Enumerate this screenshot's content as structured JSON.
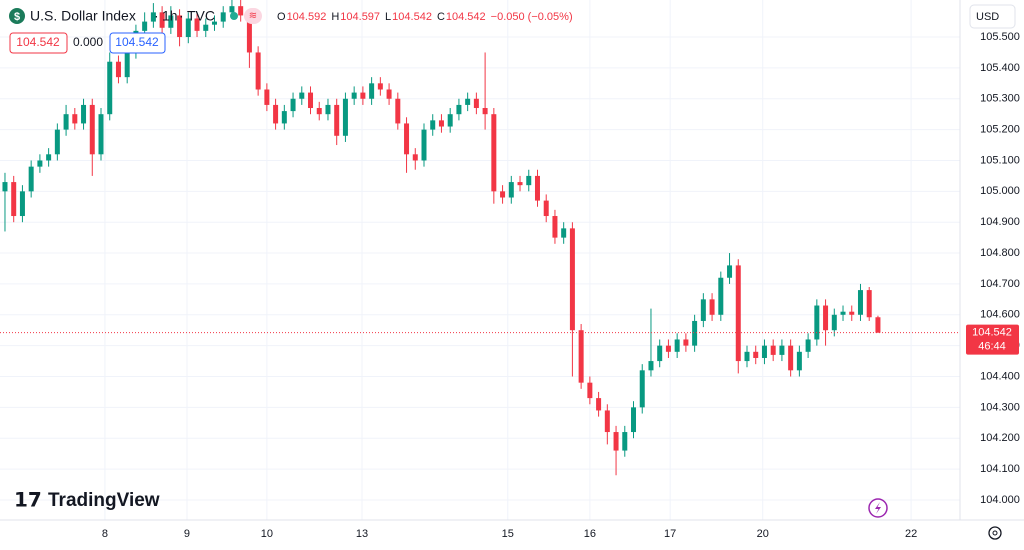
{
  "header": {
    "symbol": "U.S. Dollar Index",
    "interval": "1h",
    "exchange": "TVC",
    "ohlc": [
      {
        "key": "O",
        "value": "104.592"
      },
      {
        "key": "H",
        "value": "104.597"
      },
      {
        "key": "L",
        "value": "104.542"
      },
      {
        "key": "C",
        "value": "104.542"
      }
    ],
    "change": "−0.050 (−0.05%)",
    "sell_price": "104.542",
    "spread": "0.000",
    "buy_price": "104.542"
  },
  "currency": "USD",
  "price_tag": {
    "price": "104.542",
    "countdown": "46:44"
  },
  "logo": "TradingView",
  "chart_data": {
    "type": "candlestick",
    "up_color": "#089981",
    "down_color": "#f23645",
    "grid": true,
    "ylim": [
      103.935,
      105.62
    ],
    "xlim": [
      -0.57,
      109.4
    ],
    "yticks": [
      {
        "value": 104.0,
        "label": "104.000"
      },
      {
        "value": 104.1,
        "label": "104.100"
      },
      {
        "value": 104.2,
        "label": "104.200"
      },
      {
        "value": 104.3,
        "label": "104.300"
      },
      {
        "value": 104.4,
        "label": "104.400"
      },
      {
        "value": 104.5,
        "label": "104.500"
      },
      {
        "value": 104.6,
        "label": "104.600"
      },
      {
        "value": 104.7,
        "label": "104.700"
      },
      {
        "value": 104.8,
        "label": "104.800"
      },
      {
        "value": 104.9,
        "label": "104.900"
      },
      {
        "value": 105.0,
        "label": "105.000"
      },
      {
        "value": 105.1,
        "label": "105.100"
      },
      {
        "value": 105.2,
        "label": "105.200"
      },
      {
        "value": 105.3,
        "label": "105.300"
      },
      {
        "value": 105.4,
        "label": "105.400"
      },
      {
        "value": 105.5,
        "label": "105.500"
      }
    ],
    "xticks": [
      {
        "value": 11.45,
        "label": "8"
      },
      {
        "value": 20.85,
        "label": "9"
      },
      {
        "value": 30.0,
        "label": "10"
      },
      {
        "value": 40.9,
        "label": "13"
      },
      {
        "value": 57.6,
        "label": "15"
      },
      {
        "value": 67.0,
        "label": "16"
      },
      {
        "value": 76.2,
        "label": "17"
      },
      {
        "value": 86.8,
        "label": "20"
      },
      {
        "value": 103.8,
        "label": "22"
      }
    ],
    "open": [
      105.0,
      105.03,
      104.92,
      105.0,
      105.08,
      105.1,
      105.12,
      105.2,
      105.25,
      105.22,
      105.28,
      105.12,
      105.25,
      105.42,
      105.37,
      105.45,
      105.52,
      105.55,
      105.58,
      105.53,
      105.57,
      105.5,
      105.56,
      105.52,
      105.54,
      105.55,
      105.58,
      105.6,
      105.57,
      105.45,
      105.33,
      105.28,
      105.22,
      105.26,
      105.3,
      105.32,
      105.27,
      105.25,
      105.28,
      105.18,
      105.3,
      105.32,
      105.3,
      105.35,
      105.33,
      105.3,
      105.22,
      105.12,
      105.1,
      105.2,
      105.23,
      105.21,
      105.25,
      105.28,
      105.3,
      105.27,
      105.25,
      105.0,
      104.98,
      105.03,
      105.02,
      105.05,
      104.97,
      104.92,
      104.85,
      104.88,
      104.55,
      104.38,
      104.33,
      104.29,
      104.22,
      104.16,
      104.22,
      104.3,
      104.42,
      104.45,
      104.5,
      104.48,
      104.52,
      104.5,
      104.58,
      104.65,
      104.6,
      104.72,
      104.76,
      104.45,
      104.48,
      104.46,
      104.5,
      104.47,
      104.5,
      104.42,
      104.48,
      104.52,
      104.63,
      104.55,
      104.6,
      104.61,
      104.6,
      104.68,
      104.592
    ],
    "high": [
      105.06,
      105.05,
      105.02,
      105.1,
      105.12,
      105.14,
      105.22,
      105.28,
      105.27,
      105.3,
      105.3,
      105.27,
      105.45,
      105.44,
      105.47,
      105.54,
      105.58,
      105.61,
      105.6,
      105.6,
      105.59,
      105.58,
      105.58,
      105.56,
      105.57,
      105.6,
      105.62,
      105.62,
      105.59,
      105.47,
      105.35,
      105.3,
      105.28,
      105.32,
      105.34,
      105.34,
      105.29,
      105.3,
      105.3,
      105.32,
      105.34,
      105.34,
      105.37,
      105.37,
      105.35,
      105.32,
      105.24,
      105.14,
      105.22,
      105.25,
      105.25,
      105.27,
      105.3,
      105.32,
      105.32,
      105.45,
      105.27,
      105.02,
      105.05,
      105.05,
      105.07,
      105.07,
      104.99,
      104.94,
      104.9,
      104.9,
      104.57,
      104.4,
      104.35,
      104.31,
      104.24,
      104.24,
      104.32,
      104.44,
      104.62,
      104.52,
      104.52,
      104.54,
      104.54,
      104.6,
      104.67,
      104.67,
      104.74,
      104.8,
      104.78,
      104.5,
      104.5,
      104.52,
      104.52,
      104.52,
      104.52,
      104.5,
      104.54,
      104.65,
      104.65,
      104.62,
      104.63,
      104.63,
      104.7,
      104.69,
      104.597
    ],
    "low": [
      104.87,
      104.9,
      104.9,
      104.98,
      105.06,
      105.08,
      105.1,
      105.18,
      105.2,
      105.2,
      105.05,
      105.1,
      105.23,
      105.35,
      105.35,
      105.43,
      105.5,
      105.53,
      105.5,
      105.51,
      105.47,
      105.48,
      105.5,
      105.5,
      105.52,
      105.53,
      105.56,
      105.55,
      105.4,
      105.31,
      105.26,
      105.2,
      105.2,
      105.24,
      105.28,
      105.25,
      105.23,
      105.23,
      105.15,
      105.16,
      105.28,
      105.28,
      105.28,
      105.31,
      105.28,
      105.2,
      105.06,
      105.07,
      105.08,
      105.18,
      105.19,
      105.19,
      105.23,
      105.26,
      105.25,
      105.2,
      104.96,
      104.96,
      104.96,
      105.0,
      105.0,
      104.95,
      104.9,
      104.83,
      104.83,
      104.4,
      104.36,
      104.31,
      104.27,
      104.18,
      104.08,
      104.14,
      104.2,
      104.28,
      104.4,
      104.43,
      104.46,
      104.46,
      104.48,
      104.48,
      104.56,
      104.58,
      104.58,
      104.7,
      104.41,
      104.43,
      104.44,
      104.44,
      104.45,
      104.45,
      104.4,
      104.4,
      104.46,
      104.5,
      104.5,
      104.53,
      104.58,
      104.58,
      104.58,
      104.58,
      104.542
    ],
    "close": [
      105.03,
      104.92,
      105.0,
      105.08,
      105.1,
      105.12,
      105.2,
      105.25,
      105.22,
      105.28,
      105.12,
      105.25,
      105.42,
      105.37,
      105.45,
      105.52,
      105.55,
      105.58,
      105.53,
      105.57,
      105.5,
      105.56,
      105.52,
      105.54,
      105.55,
      105.58,
      105.6,
      105.57,
      105.45,
      105.33,
      105.28,
      105.22,
      105.26,
      105.3,
      105.32,
      105.27,
      105.25,
      105.28,
      105.18,
      105.3,
      105.32,
      105.3,
      105.35,
      105.33,
      105.3,
      105.22,
      105.12,
      105.1,
      105.2,
      105.23,
      105.21,
      105.25,
      105.28,
      105.3,
      105.27,
      105.25,
      105.0,
      104.98,
      105.03,
      105.02,
      105.05,
      104.97,
      104.92,
      104.85,
      104.88,
      104.55,
      104.38,
      104.33,
      104.29,
      104.22,
      104.16,
      104.22,
      104.3,
      104.42,
      104.45,
      104.5,
      104.48,
      104.52,
      104.5,
      104.58,
      104.65,
      104.6,
      104.72,
      104.76,
      104.45,
      104.48,
      104.46,
      104.5,
      104.47,
      104.5,
      104.42,
      104.48,
      104.52,
      104.63,
      104.55,
      104.6,
      104.61,
      104.6,
      104.68,
      104.592,
      104.542
    ]
  }
}
